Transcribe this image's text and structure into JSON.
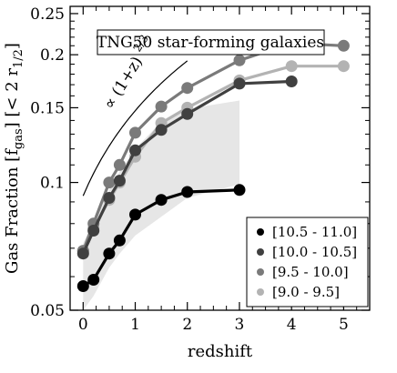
{
  "chart_data": {
    "type": "line",
    "title": "TNG50 star-forming galaxies",
    "xlabel": "redshift",
    "ylabel": "Gas Fraction [f",
    "ylabel_sub": "gas",
    "ylabel_tail": "] [< 2 r",
    "ylabel_tail_sub": "1/2",
    "ylabel_end": "]",
    "xlim": [
      -0.25,
      5.5
    ],
    "ylim": [
      0.05,
      0.26
    ],
    "yscale": "log",
    "xticks": [
      0,
      1,
      2,
      3,
      4,
      5
    ],
    "xtick_labels": [
      "0",
      "1",
      "2",
      "3",
      "4",
      "5"
    ],
    "yticks": [
      0.05,
      0.1,
      0.15,
      0.2,
      0.25
    ],
    "ytick_labels": [
      "0.05",
      "0.1",
      "0.15",
      "0.2",
      "0.25"
    ],
    "grid": false,
    "legend_position": "bottom-right",
    "annotation": {
      "text": "∝ (1+z)",
      "exponent": "2/3",
      "curve_z": [
        0,
        2
      ],
      "curve_norm": 0.093
    },
    "shaded_band": {
      "x": [
        0,
        0.2,
        0.5,
        0.7,
        1.0,
        1.5,
        2.0,
        3.0,
        3.0,
        2.0,
        1.5,
        1.0,
        0.7,
        0.5,
        0.2,
        0
      ],
      "y": [
        0.05,
        0.054,
        0.063,
        0.068,
        0.075,
        0.083,
        0.092,
        0.099,
        0.156,
        0.149,
        0.139,
        0.12,
        0.106,
        0.096,
        0.081,
        0.072
      ],
      "color": "#e6e6e6"
    },
    "series": [
      {
        "name": "[9.0 - 9.5]",
        "color": "#b3b3b3",
        "x": [
          0,
          0.2,
          0.5,
          0.7,
          1.0,
          1.5,
          2.0,
          3.0,
          4.0,
          5.0
        ],
        "y": [
          0.069,
          0.078,
          0.091,
          0.1,
          0.115,
          0.138,
          0.15,
          0.174,
          0.188,
          0.188
        ]
      },
      {
        "name": "[9.5 - 10.0]",
        "color": "#7a7a7a",
        "x": [
          0,
          0.2,
          0.5,
          0.7,
          1.0,
          1.5,
          2.0,
          3.0,
          4.0,
          5.0
        ],
        "y": [
          0.069,
          0.08,
          0.1,
          0.11,
          0.131,
          0.151,
          0.167,
          0.194,
          0.213,
          0.21
        ]
      },
      {
        "name": "[10.0 - 10.5]",
        "color": "#404040",
        "x": [
          0,
          0.2,
          0.5,
          0.7,
          1.0,
          1.5,
          2.0,
          3.0,
          4.0
        ],
        "y": [
          0.068,
          0.077,
          0.092,
          0.101,
          0.119,
          0.133,
          0.145,
          0.171,
          0.173
        ]
      },
      {
        "name": "[10.5 - 11.0]",
        "color": "#000000",
        "x": [
          0,
          0.2,
          0.5,
          0.7,
          1.0,
          1.5,
          2.0,
          3.0
        ],
        "y": [
          0.057,
          0.059,
          0.068,
          0.073,
          0.084,
          0.091,
          0.095,
          0.096
        ]
      }
    ],
    "legend_order": [
      "[10.5 - 11.0]",
      "[10.0 - 10.5]",
      "[9.5 - 10.0]",
      "[9.0 - 9.5]"
    ]
  }
}
